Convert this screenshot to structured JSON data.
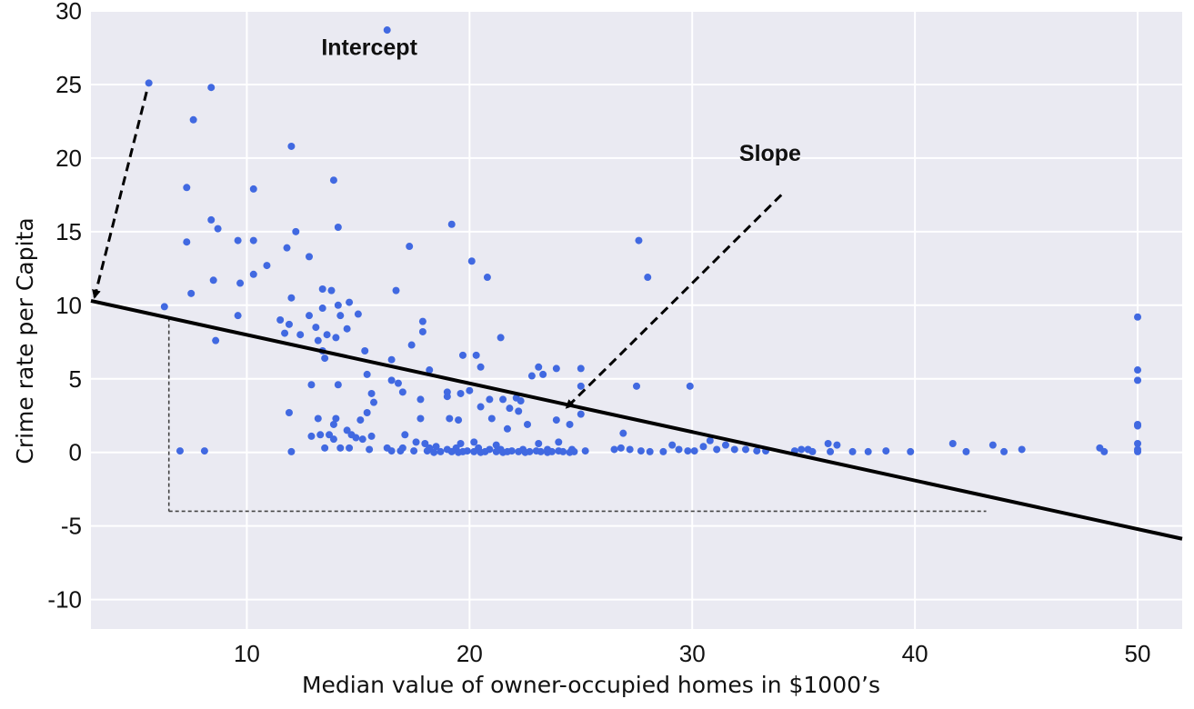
{
  "chart_data": {
    "type": "scatter",
    "title": "",
    "xlabel": "Median value of owner-occupied homes in $1000’s",
    "ylabel": "Crime rate per Capita",
    "xlim": [
      3,
      52
    ],
    "ylim": [
      -12,
      30
    ],
    "x_ticks": [
      10,
      20,
      30,
      40,
      50
    ],
    "y_ticks": [
      30,
      25,
      20,
      15,
      10,
      5,
      0,
      -5,
      -10
    ],
    "x_tick_labels": [
      "10",
      "20",
      "30",
      "40",
      "50"
    ],
    "y_tick_labels": [
      "30",
      "25",
      "20",
      "15",
      "10",
      "5",
      "0",
      "-5",
      "-10"
    ],
    "grid": true,
    "background_color": "#eaeaf2",
    "point_color": "#4169e1",
    "regression_line": {
      "intercept": 10.3,
      "slope": -0.33,
      "color": "#000000"
    },
    "slope_guide": {
      "x_from": 6.5,
      "x_to": 43.2,
      "y_at": -4
    },
    "annotations": [
      {
        "text": "Intercept",
        "x_text": 15.5,
        "y_text": 27,
        "arrow_from": [
          5.5,
          24.5
        ],
        "arrow_to": [
          3.0,
          10.3
        ]
      },
      {
        "text": "Slope",
        "x_text": 33.5,
        "y_text": 19.8,
        "arrow_from": [
          34,
          17.5
        ],
        "arrow_to": [
          24.2,
          2.8
        ]
      }
    ],
    "points": [
      [
        5.6,
        25.1
      ],
      [
        16.3,
        28.7
      ],
      [
        8.4,
        24.8
      ],
      [
        7.6,
        22.6
      ],
      [
        12.0,
        20.8
      ],
      [
        13.9,
        18.5
      ],
      [
        7.3,
        18.0
      ],
      [
        10.3,
        17.9
      ],
      [
        8.4,
        15.8
      ],
      [
        8.7,
        15.2
      ],
      [
        14.1,
        15.3
      ],
      [
        12.2,
        15.0
      ],
      [
        19.2,
        15.5
      ],
      [
        7.3,
        14.3
      ],
      [
        9.6,
        14.4
      ],
      [
        10.3,
        14.4
      ],
      [
        17.3,
        14.0
      ],
      [
        11.8,
        13.9
      ],
      [
        20.1,
        13.0
      ],
      [
        27.6,
        14.4
      ],
      [
        12.8,
        13.3
      ],
      [
        10.9,
        12.7
      ],
      [
        10.3,
        12.1
      ],
      [
        8.5,
        11.7
      ],
      [
        9.7,
        11.5
      ],
      [
        20.8,
        11.9
      ],
      [
        28.0,
        11.9
      ],
      [
        7.5,
        10.8
      ],
      [
        13.4,
        11.1
      ],
      [
        13.8,
        11.0
      ],
      [
        16.7,
        11.0
      ],
      [
        12.0,
        10.5
      ],
      [
        14.1,
        10.0
      ],
      [
        14.6,
        10.2
      ],
      [
        6.3,
        9.9
      ],
      [
        13.4,
        9.8
      ],
      [
        9.6,
        9.3
      ],
      [
        11.5,
        9.0
      ],
      [
        12.8,
        9.3
      ],
      [
        14.2,
        9.3
      ],
      [
        15.0,
        9.4
      ],
      [
        11.9,
        8.7
      ],
      [
        17.9,
        8.9
      ],
      [
        13.1,
        8.5
      ],
      [
        14.5,
        8.4
      ],
      [
        11.7,
        8.1
      ],
      [
        12.4,
        8.0
      ],
      [
        13.6,
        8.0
      ],
      [
        17.9,
        8.2
      ],
      [
        21.4,
        7.8
      ],
      [
        8.6,
        7.6
      ],
      [
        13.2,
        7.6
      ],
      [
        14.0,
        7.8
      ],
      [
        17.4,
        7.3
      ],
      [
        13.4,
        6.9
      ],
      [
        15.3,
        6.9
      ],
      [
        19.7,
        6.6
      ],
      [
        20.3,
        6.6
      ],
      [
        13.5,
        6.4
      ],
      [
        16.5,
        6.3
      ],
      [
        18.2,
        5.6
      ],
      [
        20.5,
        5.8
      ],
      [
        23.1,
        5.8
      ],
      [
        23.9,
        5.7
      ],
      [
        25.0,
        5.7
      ],
      [
        15.4,
        5.3
      ],
      [
        22.8,
        5.2
      ],
      [
        23.3,
        5.3
      ],
      [
        16.5,
        4.9
      ],
      [
        16.8,
        4.7
      ],
      [
        12.9,
        4.6
      ],
      [
        14.1,
        4.6
      ],
      [
        25.0,
        4.5
      ],
      [
        27.5,
        4.5
      ],
      [
        29.9,
        4.5
      ],
      [
        17.0,
        4.1
      ],
      [
        19.0,
        4.1
      ],
      [
        19.6,
        4.0
      ],
      [
        20.0,
        4.2
      ],
      [
        15.6,
        4.0
      ],
      [
        17.8,
        3.6
      ],
      [
        19.0,
        3.8
      ],
      [
        20.9,
        3.6
      ],
      [
        21.5,
        3.6
      ],
      [
        22.1,
        3.7
      ],
      [
        22.3,
        3.5
      ],
      [
        15.7,
        3.4
      ],
      [
        20.5,
        3.1
      ],
      [
        21.8,
        3.0
      ],
      [
        11.9,
        2.7
      ],
      [
        15.4,
        2.7
      ],
      [
        22.2,
        2.8
      ],
      [
        25.0,
        2.6
      ],
      [
        13.2,
        2.3
      ],
      [
        14.0,
        2.3
      ],
      [
        15.1,
        2.2
      ],
      [
        17.8,
        2.3
      ],
      [
        19.1,
        2.3
      ],
      [
        19.5,
        2.2
      ],
      [
        21.0,
        2.3
      ],
      [
        23.9,
        2.2
      ],
      [
        13.9,
        1.9
      ],
      [
        22.6,
        1.9
      ],
      [
        24.5,
        1.9
      ],
      [
        14.5,
        1.5
      ],
      [
        21.7,
        1.6
      ],
      [
        14.7,
        1.2
      ],
      [
        12.9,
        1.1
      ],
      [
        13.3,
        1.2
      ],
      [
        13.7,
        1.2
      ],
      [
        13.9,
        0.9
      ],
      [
        14.9,
        1.0
      ],
      [
        15.6,
        1.1
      ],
      [
        17.1,
        1.2
      ],
      [
        26.9,
        1.3
      ],
      [
        15.2,
        0.9
      ],
      [
        17.6,
        0.7
      ],
      [
        18.0,
        0.6
      ],
      [
        19.6,
        0.6
      ],
      [
        20.2,
        0.7
      ],
      [
        21.2,
        0.5
      ],
      [
        23.1,
        0.6
      ],
      [
        24.0,
        0.7
      ],
      [
        13.5,
        0.3
      ],
      [
        14.2,
        0.3
      ],
      [
        14.6,
        0.3
      ],
      [
        15.5,
        0.2
      ],
      [
        16.3,
        0.3
      ],
      [
        17.0,
        0.3
      ],
      [
        18.2,
        0.3
      ],
      [
        18.5,
        0.4
      ],
      [
        19.0,
        0.2
      ],
      [
        19.4,
        0.3
      ],
      [
        19.9,
        0.1
      ],
      [
        20.4,
        0.3
      ],
      [
        20.9,
        0.2
      ],
      [
        21.4,
        0.2
      ],
      [
        21.9,
        0.1
      ],
      [
        22.4,
        0.2
      ],
      [
        23.0,
        0.1
      ],
      [
        23.5,
        0.2
      ],
      [
        24.0,
        0.1
      ],
      [
        24.6,
        0.2
      ],
      [
        25.2,
        0.1
      ],
      [
        16.5,
        0.1
      ],
      [
        16.9,
        0.1
      ],
      [
        17.5,
        0.1
      ],
      [
        18.1,
        0.1
      ],
      [
        18.7,
        0.05
      ],
      [
        19.2,
        0.05
      ],
      [
        19.7,
        0.05
      ],
      [
        20.2,
        0.05
      ],
      [
        20.7,
        0.05
      ],
      [
        21.2,
        0.05
      ],
      [
        21.7,
        0.05
      ],
      [
        22.2,
        0.05
      ],
      [
        22.7,
        0.05
      ],
      [
        23.2,
        0.05
      ],
      [
        23.7,
        0.05
      ],
      [
        24.2,
        0.05
      ],
      [
        24.7,
        0.05
      ],
      [
        18.4,
        0.0
      ],
      [
        19.5,
        0.0
      ],
      [
        20.5,
        0.0
      ],
      [
        21.5,
        0.0
      ],
      [
        22.5,
        0.0
      ],
      [
        23.5,
        0.0
      ],
      [
        24.5,
        0.0
      ],
      [
        7.0,
        0.1
      ],
      [
        8.1,
        0.1
      ],
      [
        12.0,
        0.05
      ],
      [
        26.5,
        0.2
      ],
      [
        26.8,
        0.3
      ],
      [
        27.2,
        0.2
      ],
      [
        27.7,
        0.1
      ],
      [
        28.1,
        0.05
      ],
      [
        28.7,
        0.05
      ],
      [
        29.1,
        0.5
      ],
      [
        29.4,
        0.2
      ],
      [
        29.8,
        0.1
      ],
      [
        30.1,
        0.1
      ],
      [
        30.5,
        0.4
      ],
      [
        30.8,
        0.8
      ],
      [
        31.1,
        0.2
      ],
      [
        31.5,
        0.5
      ],
      [
        31.9,
        0.2
      ],
      [
        32.4,
        0.2
      ],
      [
        32.9,
        0.1
      ],
      [
        33.3,
        0.1
      ],
      [
        34.6,
        0.1
      ],
      [
        34.9,
        0.2
      ],
      [
        35.2,
        0.2
      ],
      [
        35.4,
        0.05
      ],
      [
        36.1,
        0.6
      ],
      [
        36.5,
        0.5
      ],
      [
        36.2,
        0.05
      ],
      [
        37.2,
        0.05
      ],
      [
        37.9,
        0.05
      ],
      [
        38.7,
        0.1
      ],
      [
        39.8,
        0.05
      ],
      [
        41.7,
        0.6
      ],
      [
        42.3,
        0.05
      ],
      [
        43.5,
        0.5
      ],
      [
        44.0,
        0.05
      ],
      [
        44.8,
        0.2
      ],
      [
        48.3,
        0.3
      ],
      [
        48.5,
        0.05
      ],
      [
        50.0,
        9.2
      ],
      [
        50.0,
        5.6
      ],
      [
        50.0,
        4.9
      ],
      [
        50.0,
        1.9
      ],
      [
        50.0,
        1.8
      ],
      [
        50.0,
        0.6
      ],
      [
        50.0,
        0.2
      ],
      [
        50.0,
        0.05
      ]
    ]
  }
}
